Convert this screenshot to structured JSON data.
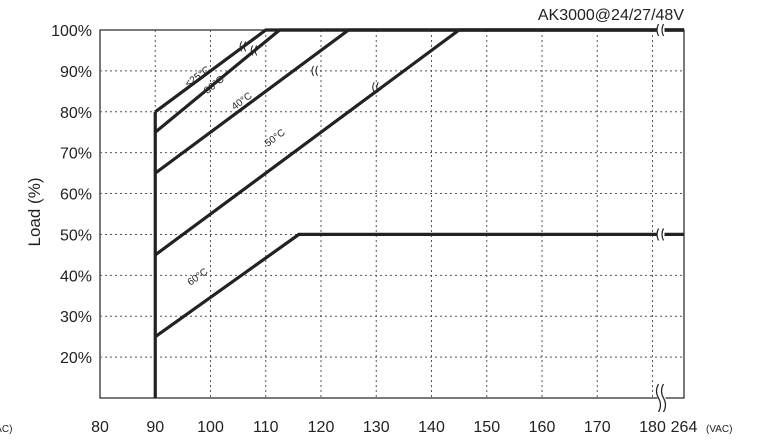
{
  "chart_data": {
    "type": "line",
    "title": "AK3000@24/27/48V",
    "ylabel": "Load (%)",
    "xlabel": "",
    "xunit_left": "(VAC)",
    "xunit_right": "(VAC)",
    "x_ticks": [
      "80",
      "90",
      "100",
      "110",
      "120",
      "130",
      "140",
      "150",
      "160",
      "170",
      "180",
      "264"
    ],
    "y_ticks": [
      "20%",
      "30%",
      "40%",
      "50%",
      "60%",
      "70%",
      "80%",
      "90%",
      "100%"
    ],
    "xlim": [
      80,
      264
    ],
    "ylim": [
      10,
      100
    ],
    "grid": true,
    "axis_break": "x between 180 and 264",
    "series": [
      {
        "name": "≤25°C",
        "points": [
          [
            90,
            80
          ],
          [
            110,
            100
          ],
          [
            264,
            100
          ]
        ]
      },
      {
        "name": "30°C",
        "points": [
          [
            90,
            75
          ],
          [
            112.5,
            100
          ],
          [
            264,
            100
          ]
        ]
      },
      {
        "name": "40°C",
        "points": [
          [
            90,
            65
          ],
          [
            125,
            100
          ],
          [
            264,
            100
          ]
        ]
      },
      {
        "name": "50°C",
        "points": [
          [
            90,
            45
          ],
          [
            145,
            100
          ],
          [
            264,
            100
          ]
        ]
      },
      {
        "name": "60°C",
        "points": [
          [
            90,
            25
          ],
          [
            116,
            50
          ],
          [
            264,
            50
          ]
        ]
      }
    ]
  }
}
